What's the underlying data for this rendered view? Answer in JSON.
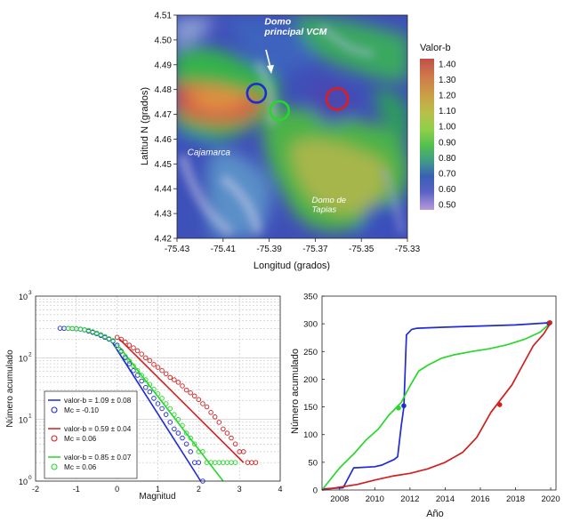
{
  "chart_data": [
    {
      "type": "heatmap",
      "xlabel": "Longitud (grados)",
      "ylabel": "Latitud N (grados)",
      "xlim": [
        -75.43,
        -75.33
      ],
      "ylim": [
        0.42,
        4.51
      ],
      "x_ticks": [
        "-75.43",
        "-75.41",
        "-75.39",
        "-75.37",
        "-75.35",
        "-75.33"
      ],
      "y_ticks": [
        "4.51",
        "4.50",
        "4.49",
        "4.48",
        "4.47",
        "4.46",
        "4.45",
        "4.44",
        "4.43",
        "4.42"
      ],
      "colorbar": {
        "title": "Valor-b",
        "ticks": [
          "1.40",
          "1.30",
          "1.20",
          "1.10",
          "1.00",
          "0.90",
          "0.80",
          "0.70",
          "0.60",
          "0.50"
        ],
        "colors": [
          "#c0504a",
          "#d07a4a",
          "#c9a246",
          "#b8c04a",
          "#8fcf4a",
          "#50bf50",
          "#3f9a8a",
          "#3a5fb6",
          "#5a62c6",
          "#b79ad9"
        ]
      },
      "annotations": [
        {
          "text": "Domo",
          "lon": -75.392,
          "lat": 4.5063
        },
        {
          "text": "principal VCM",
          "lon": -75.392,
          "lat": 4.5022
        },
        {
          "text": "Cajamarca",
          "lon": -75.4255,
          "lat": 4.4535
        },
        {
          "text": "Domo de",
          "lon": -75.3715,
          "lat": 4.4343
        },
        {
          "text": "Tapias",
          "lon": -75.3715,
          "lat": 4.4305
        }
      ],
      "circles": [
        {
          "color": "#1f2bd6",
          "lon": -75.3955,
          "lat": 4.4785
        },
        {
          "color": "#25d82a",
          "lon": -75.3855,
          "lat": 4.4715
        },
        {
          "color": "#e01d1d",
          "lon": -75.3605,
          "lat": 4.4762
        }
      ]
    },
    {
      "type": "scatter",
      "xlabel": "Magnitud",
      "ylabel": "Número acumulado",
      "xlim": [
        -2,
        4
      ],
      "ylim": [
        1,
        1000
      ],
      "log_y": true,
      "grid": true,
      "x_ticks": [
        "-2",
        "-1",
        "0",
        "1",
        "2",
        "3",
        "4"
      ],
      "y_ticks": [
        "10",
        "10",
        "10",
        "10"
      ],
      "y_tick_exponents": [
        "0",
        "1",
        "2",
        "3"
      ],
      "legend_position": "bottom-left",
      "legend": [
        {
          "line": "valor-b = 1.09 ± 0.08",
          "mc": "Mc = -0.10",
          "color": "#1f2bd6"
        },
        {
          "line": "valor-b = 0.59 ± 0.04",
          "mc": "Mc = 0.06",
          "color": "#d11f1f"
        },
        {
          "line": "valor-b = 0.85 ± 0.07",
          "mc": "Mc = 0.06",
          "color": "#27d82a"
        }
      ],
      "series": [
        {
          "color": "#1f2bd6",
          "points": [
            [
              -1.4,
              301
            ],
            [
              -1.3,
              300
            ],
            [
              -1.2,
              299
            ],
            [
              -1.1,
              298
            ],
            [
              -1.0,
              295
            ],
            [
              -0.9,
              291
            ],
            [
              -0.8,
              283
            ],
            [
              -0.7,
              270
            ],
            [
              -0.6,
              258
            ],
            [
              -0.5,
              245
            ],
            [
              -0.4,
              230
            ],
            [
              -0.3,
              214
            ],
            [
              -0.2,
              200
            ],
            [
              -0.1,
              185
            ],
            [
              0.0,
              160
            ],
            [
              0.1,
              128
            ],
            [
              0.2,
              100
            ],
            [
              0.3,
              80
            ],
            [
              0.4,
              62
            ],
            [
              0.5,
              52
            ],
            [
              0.6,
              42
            ],
            [
              0.7,
              33
            ],
            [
              0.8,
              28
            ],
            [
              0.9,
              22
            ],
            [
              1.0,
              18
            ],
            [
              1.1,
              15
            ],
            [
              1.2,
              12
            ],
            [
              1.3,
              9
            ],
            [
              1.4,
              7
            ],
            [
              1.5,
              6
            ],
            [
              1.6,
              5
            ],
            [
              1.7,
              4
            ],
            [
              1.8,
              3
            ],
            [
              1.9,
              2
            ],
            [
              2.0,
              2
            ],
            [
              2.1,
              1
            ]
          ],
          "fit": [
            [
              -0.1,
              170
            ],
            [
              2.05,
              1
            ]
          ]
        },
        {
          "color": "#d11f1f",
          "points": [
            [
              0.0,
              215
            ],
            [
              0.1,
              200
            ],
            [
              0.2,
              180
            ],
            [
              0.3,
              160
            ],
            [
              0.4,
              145
            ],
            [
              0.5,
              130
            ],
            [
              0.6,
              115
            ],
            [
              0.7,
              100
            ],
            [
              0.8,
              90
            ],
            [
              0.9,
              78
            ],
            [
              1.0,
              70
            ],
            [
              1.1,
              62
            ],
            [
              1.2,
              55
            ],
            [
              1.3,
              48
            ],
            [
              1.4,
              44
            ],
            [
              1.5,
              40
            ],
            [
              1.6,
              35
            ],
            [
              1.7,
              30
            ],
            [
              1.8,
              27
            ],
            [
              1.9,
              24
            ],
            [
              2.0,
              21
            ],
            [
              2.1,
              18
            ],
            [
              2.2,
              16
            ],
            [
              2.3,
              13
            ],
            [
              2.4,
              11
            ],
            [
              2.5,
              9
            ],
            [
              2.6,
              7
            ],
            [
              2.7,
              6
            ],
            [
              2.8,
              5
            ],
            [
              2.9,
              4
            ],
            [
              3.0,
              3
            ],
            [
              3.1,
              3
            ],
            [
              3.2,
              2
            ],
            [
              3.3,
              2
            ],
            [
              3.4,
              2
            ]
          ],
          "fit": [
            [
              0.06,
              200
            ],
            [
              3.1,
              2
            ]
          ]
        },
        {
          "color": "#27d82a",
          "points": [
            [
              -1.2,
              300
            ],
            [
              -1.1,
              299
            ],
            [
              -1.0,
              297
            ],
            [
              -0.9,
              293
            ],
            [
              -0.8,
              286
            ],
            [
              -0.7,
              277
            ],
            [
              -0.6,
              265
            ],
            [
              -0.5,
              252
            ],
            [
              -0.4,
              238
            ],
            [
              -0.3,
              222
            ],
            [
              -0.2,
              205
            ],
            [
              -0.1,
              190
            ],
            [
              0.0,
              150
            ],
            [
              0.1,
              125
            ],
            [
              0.2,
              105
            ],
            [
              0.3,
              88
            ],
            [
              0.4,
              74
            ],
            [
              0.5,
              62
            ],
            [
              0.6,
              52
            ],
            [
              0.7,
              44
            ],
            [
              0.8,
              37
            ],
            [
              0.9,
              31
            ],
            [
              1.0,
              26
            ],
            [
              1.1,
              22
            ],
            [
              1.2,
              18
            ],
            [
              1.3,
              15
            ],
            [
              1.4,
              12
            ],
            [
              1.5,
              10
            ],
            [
              1.6,
              8
            ],
            [
              1.7,
              6
            ],
            [
              1.8,
              5
            ],
            [
              1.9,
              4
            ],
            [
              2.0,
              3
            ],
            [
              2.1,
              3
            ],
            [
              2.2,
              2
            ],
            [
              2.3,
              2
            ],
            [
              2.4,
              2
            ],
            [
              2.5,
              2
            ],
            [
              2.6,
              2
            ],
            [
              2.7,
              2
            ],
            [
              2.8,
              2
            ],
            [
              2.9,
              2
            ]
          ],
          "fit": [
            [
              0.06,
              150
            ],
            [
              2.6,
              1
            ]
          ]
        }
      ]
    },
    {
      "type": "line",
      "xlabel": "Año",
      "ylabel": "Número acumulado",
      "xlim": [
        2007,
        2020.3
      ],
      "ylim": [
        0,
        350
      ],
      "x_ticks": [
        "2008",
        "2010",
        "2012",
        "2014",
        "2016",
        "2018",
        "2020"
      ],
      "y_ticks": [
        "0",
        "50",
        "100",
        "150",
        "200",
        "250",
        "300",
        "350"
      ],
      "series": [
        {
          "color": "#1f2bd6",
          "points": [
            [
              2007.0,
              2
            ],
            [
              2008.2,
              4
            ],
            [
              2008.8,
              40
            ],
            [
              2010.0,
              42
            ],
            [
              2010.4,
              45
            ],
            [
              2011.1,
              55
            ],
            [
              2011.3,
              60
            ],
            [
              2011.5,
              115
            ],
            [
              2011.65,
              150
            ],
            [
              2011.8,
              280
            ],
            [
              2012.1,
              290
            ],
            [
              2012.4,
              292
            ],
            [
              2014.0,
              294
            ],
            [
              2016.0,
              296
            ],
            [
              2018.0,
              298
            ],
            [
              2020.0,
              302
            ]
          ],
          "markers": [
            [
              2011.65,
              152
            ],
            [
              2019.9,
              301
            ]
          ]
        },
        {
          "color": "#27d82a",
          "points": [
            [
              2007.0,
              0
            ],
            [
              2007.5,
              20
            ],
            [
              2008.0,
              40
            ],
            [
              2008.8,
              65
            ],
            [
              2009.5,
              90
            ],
            [
              2010.2,
              110
            ],
            [
              2010.8,
              135
            ],
            [
              2011.5,
              158
            ],
            [
              2012.0,
              188
            ],
            [
              2012.5,
              215
            ],
            [
              2013.0,
              225
            ],
            [
              2013.8,
              238
            ],
            [
              2014.5,
              244
            ],
            [
              2015.5,
              250
            ],
            [
              2016.5,
              255
            ],
            [
              2017.5,
              262
            ],
            [
              2018.5,
              272
            ],
            [
              2019.4,
              285
            ],
            [
              2020.0,
              302
            ]
          ],
          "markers": [
            [
              2011.35,
              148
            ],
            [
              2019.95,
              302
            ]
          ]
        },
        {
          "color": "#d11f1f",
          "points": [
            [
              2007.0,
              0
            ],
            [
              2008.0,
              5
            ],
            [
              2009.0,
              10
            ],
            [
              2010.0,
              18
            ],
            [
              2011.0,
              25
            ],
            [
              2012.0,
              30
            ],
            [
              2013.0,
              38
            ],
            [
              2014.0,
              50
            ],
            [
              2015.0,
              68
            ],
            [
              2015.8,
              95
            ],
            [
              2016.6,
              140
            ],
            [
              2017.2,
              165
            ],
            [
              2017.8,
              190
            ],
            [
              2018.4,
              225
            ],
            [
              2019.0,
              260
            ],
            [
              2019.6,
              282
            ],
            [
              2020.0,
              302
            ]
          ],
          "markers": [
            [
              2017.1,
              154
            ],
            [
              2019.95,
              302
            ]
          ]
        }
      ]
    }
  ]
}
